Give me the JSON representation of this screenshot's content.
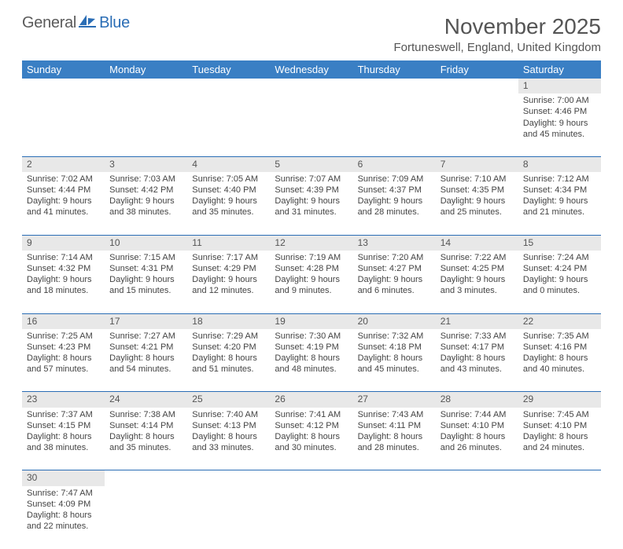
{
  "logo": {
    "text1": "General",
    "text2": "Blue"
  },
  "title": "November 2025",
  "subtitle": "Fortuneswell, England, United Kingdom",
  "theme": {
    "header_bg": "#3a7fc4",
    "header_fg": "#ffffff",
    "daynum_bg": "#e8e8e8",
    "row_border": "#2a6db5",
    "page_bg": "#ffffff",
    "text_color": "#444444",
    "title_color": "#555555",
    "logo_gray": "#5a5a5a",
    "logo_blue": "#2a6db5"
  },
  "dow": [
    "Sunday",
    "Monday",
    "Tuesday",
    "Wednesday",
    "Thursday",
    "Friday",
    "Saturday"
  ],
  "weeks": [
    [
      null,
      null,
      null,
      null,
      null,
      null,
      {
        "n": "1",
        "sr": "7:00 AM",
        "ss": "4:46 PM",
        "dl": "9 hours and 45 minutes."
      }
    ],
    [
      {
        "n": "2",
        "sr": "7:02 AM",
        "ss": "4:44 PM",
        "dl": "9 hours and 41 minutes."
      },
      {
        "n": "3",
        "sr": "7:03 AM",
        "ss": "4:42 PM",
        "dl": "9 hours and 38 minutes."
      },
      {
        "n": "4",
        "sr": "7:05 AM",
        "ss": "4:40 PM",
        "dl": "9 hours and 35 minutes."
      },
      {
        "n": "5",
        "sr": "7:07 AM",
        "ss": "4:39 PM",
        "dl": "9 hours and 31 minutes."
      },
      {
        "n": "6",
        "sr": "7:09 AM",
        "ss": "4:37 PM",
        "dl": "9 hours and 28 minutes."
      },
      {
        "n": "7",
        "sr": "7:10 AM",
        "ss": "4:35 PM",
        "dl": "9 hours and 25 minutes."
      },
      {
        "n": "8",
        "sr": "7:12 AM",
        "ss": "4:34 PM",
        "dl": "9 hours and 21 minutes."
      }
    ],
    [
      {
        "n": "9",
        "sr": "7:14 AM",
        "ss": "4:32 PM",
        "dl": "9 hours and 18 minutes."
      },
      {
        "n": "10",
        "sr": "7:15 AM",
        "ss": "4:31 PM",
        "dl": "9 hours and 15 minutes."
      },
      {
        "n": "11",
        "sr": "7:17 AM",
        "ss": "4:29 PM",
        "dl": "9 hours and 12 minutes."
      },
      {
        "n": "12",
        "sr": "7:19 AM",
        "ss": "4:28 PM",
        "dl": "9 hours and 9 minutes."
      },
      {
        "n": "13",
        "sr": "7:20 AM",
        "ss": "4:27 PM",
        "dl": "9 hours and 6 minutes."
      },
      {
        "n": "14",
        "sr": "7:22 AM",
        "ss": "4:25 PM",
        "dl": "9 hours and 3 minutes."
      },
      {
        "n": "15",
        "sr": "7:24 AM",
        "ss": "4:24 PM",
        "dl": "9 hours and 0 minutes."
      }
    ],
    [
      {
        "n": "16",
        "sr": "7:25 AM",
        "ss": "4:23 PM",
        "dl": "8 hours and 57 minutes."
      },
      {
        "n": "17",
        "sr": "7:27 AM",
        "ss": "4:21 PM",
        "dl": "8 hours and 54 minutes."
      },
      {
        "n": "18",
        "sr": "7:29 AM",
        "ss": "4:20 PM",
        "dl": "8 hours and 51 minutes."
      },
      {
        "n": "19",
        "sr": "7:30 AM",
        "ss": "4:19 PM",
        "dl": "8 hours and 48 minutes."
      },
      {
        "n": "20",
        "sr": "7:32 AM",
        "ss": "4:18 PM",
        "dl": "8 hours and 45 minutes."
      },
      {
        "n": "21",
        "sr": "7:33 AM",
        "ss": "4:17 PM",
        "dl": "8 hours and 43 minutes."
      },
      {
        "n": "22",
        "sr": "7:35 AM",
        "ss": "4:16 PM",
        "dl": "8 hours and 40 minutes."
      }
    ],
    [
      {
        "n": "23",
        "sr": "7:37 AM",
        "ss": "4:15 PM",
        "dl": "8 hours and 38 minutes."
      },
      {
        "n": "24",
        "sr": "7:38 AM",
        "ss": "4:14 PM",
        "dl": "8 hours and 35 minutes."
      },
      {
        "n": "25",
        "sr": "7:40 AM",
        "ss": "4:13 PM",
        "dl": "8 hours and 33 minutes."
      },
      {
        "n": "26",
        "sr": "7:41 AM",
        "ss": "4:12 PM",
        "dl": "8 hours and 30 minutes."
      },
      {
        "n": "27",
        "sr": "7:43 AM",
        "ss": "4:11 PM",
        "dl": "8 hours and 28 minutes."
      },
      {
        "n": "28",
        "sr": "7:44 AM",
        "ss": "4:10 PM",
        "dl": "8 hours and 26 minutes."
      },
      {
        "n": "29",
        "sr": "7:45 AM",
        "ss": "4:10 PM",
        "dl": "8 hours and 24 minutes."
      }
    ],
    [
      {
        "n": "30",
        "sr": "7:47 AM",
        "ss": "4:09 PM",
        "dl": "8 hours and 22 minutes."
      },
      null,
      null,
      null,
      null,
      null,
      null
    ]
  ],
  "labels": {
    "sunrise": "Sunrise:",
    "sunset": "Sunset:",
    "daylight": "Daylight:"
  }
}
